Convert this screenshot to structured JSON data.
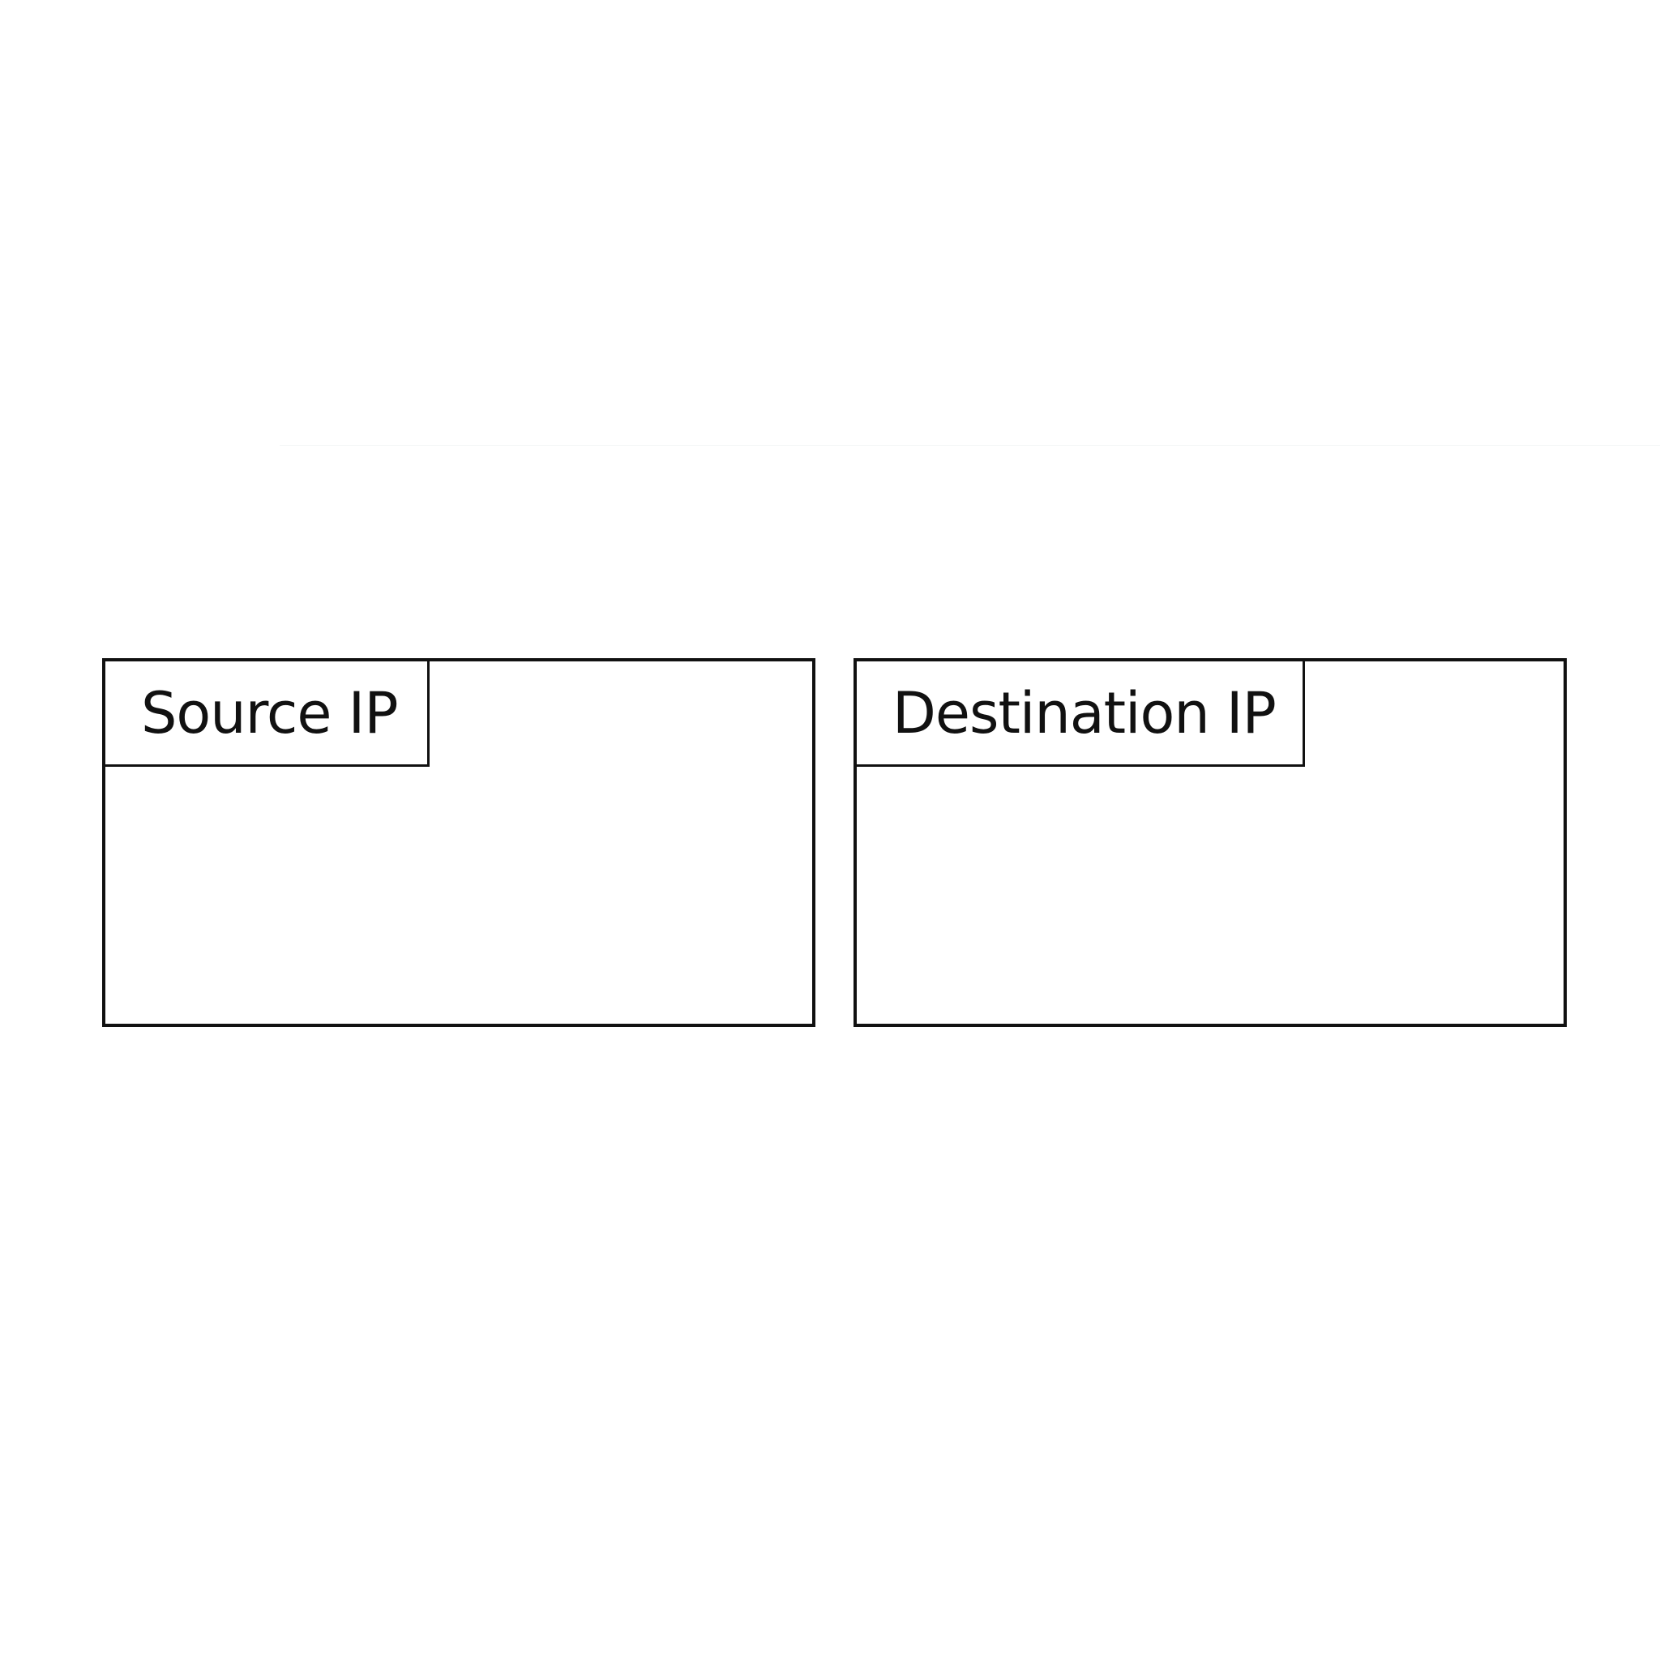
{
  "boxes": {
    "source": {
      "label": "Source IP"
    },
    "destination": {
      "label": "Destination IP"
    }
  }
}
